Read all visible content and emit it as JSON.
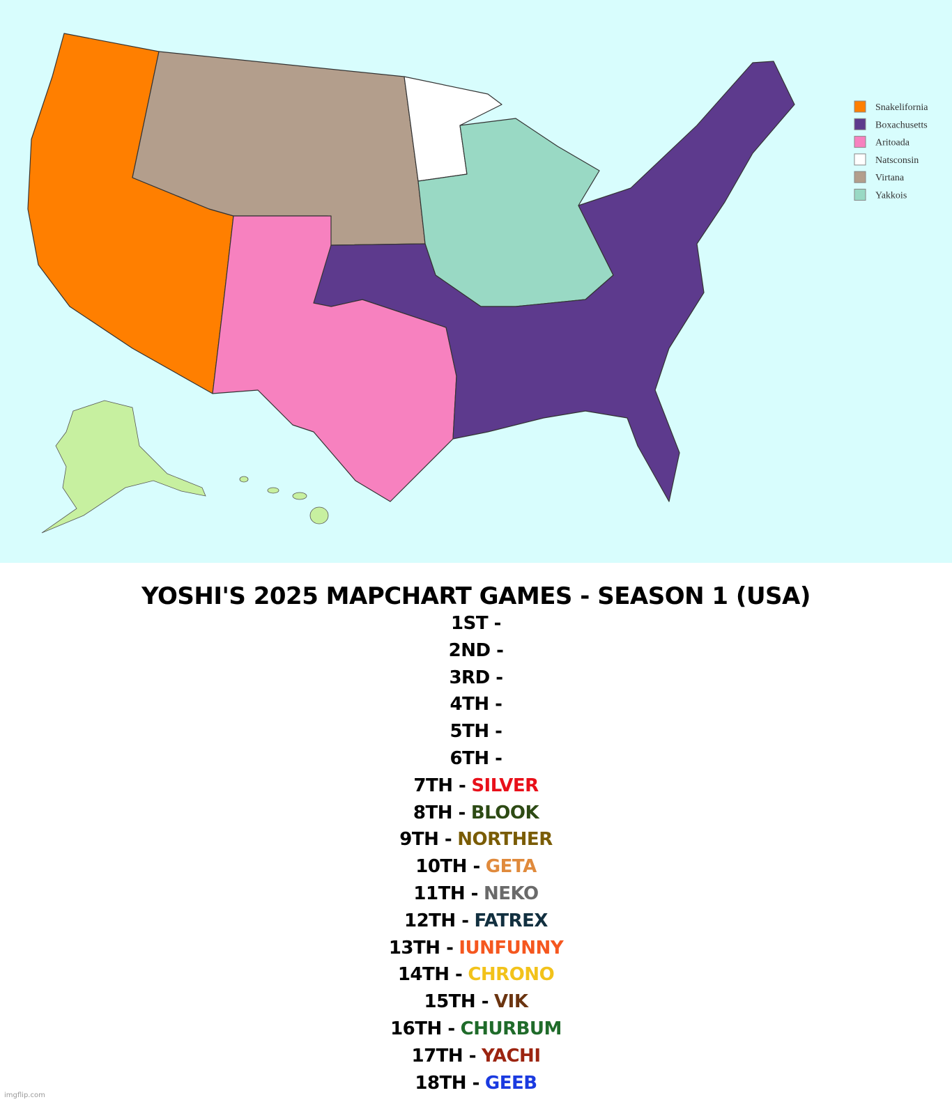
{
  "map": {
    "legend": [
      {
        "name": "Snakelifornia",
        "color": "#ff7f00"
      },
      {
        "name": "Boxachusetts",
        "color": "#5d3a8d"
      },
      {
        "name": "Aritoada",
        "color": "#f781bf"
      },
      {
        "name": "Natsconsin",
        "color": "#ffffff"
      },
      {
        "name": "Virtana",
        "color": "#b39e8c"
      },
      {
        "name": "Yakkois",
        "color": "#99d9c4"
      }
    ]
  },
  "results": {
    "title": "YOSHI'S 2025 MAPCHART GAMES - SEASON 1 (USA)",
    "placements": [
      {
        "rank": "1ST -"
      },
      {
        "rank": "2ND -"
      },
      {
        "rank": "3RD -"
      },
      {
        "rank": "4TH -"
      },
      {
        "rank": "5TH -"
      },
      {
        "rank": "6TH -"
      },
      {
        "rank": "7TH -",
        "name": "SILVER",
        "color": "#e8101a"
      },
      {
        "rank": "8TH -",
        "name": "BLOOK",
        "color": "#2d4a14"
      },
      {
        "rank": "9TH -",
        "name": "NORTHER",
        "color": "#7a5c05"
      },
      {
        "rank": "10TH -",
        "name": "GETA",
        "color": "#e08a3c"
      },
      {
        "rank": "11TH -",
        "name": "NEKO",
        "color": "#6a6a6a"
      },
      {
        "rank": "12TH -",
        "name": "FATREX",
        "color": "#123040"
      },
      {
        "rank": "13TH -",
        "name": "IUNFUNNY",
        "color": "#f5571f"
      },
      {
        "rank": "14TH -",
        "name": "CHRONO",
        "color": "#f2c21a"
      },
      {
        "rank": "15TH -",
        "name": "VIK",
        "color": "#6b3410"
      },
      {
        "rank": "16TH -",
        "name": "CHURBUM",
        "color": "#1f6b2a"
      },
      {
        "rank": "17TH -",
        "name": "YACHI",
        "color": "#9c2410"
      },
      {
        "rank": "18TH -",
        "name": "GEEB",
        "color": "#1a3ae0"
      }
    ]
  },
  "watermark": "imgflip.com"
}
